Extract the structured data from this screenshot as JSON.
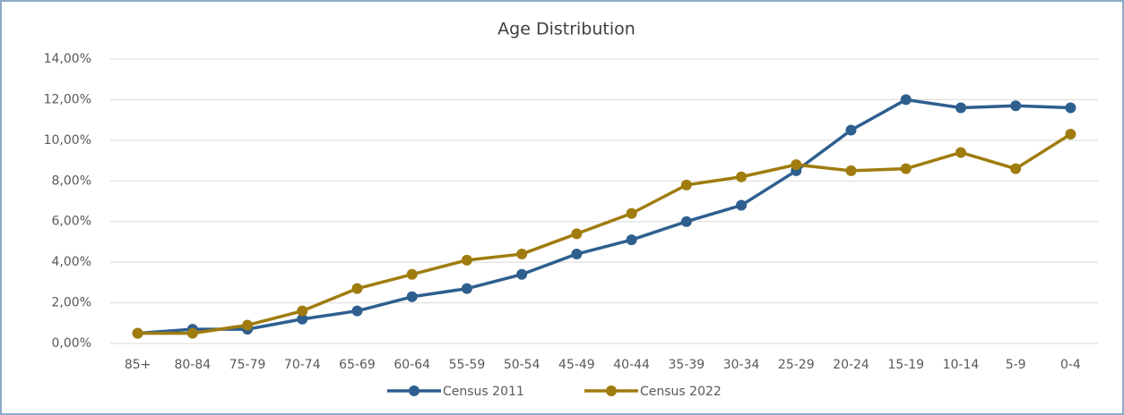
{
  "chart_data": {
    "type": "line",
    "title": "Age Distribution",
    "categories": [
      "85+",
      "80-84",
      "75-79",
      "70-74",
      "65-69",
      "60-64",
      "55-59",
      "50-54",
      "45-49",
      "40-44",
      "35-39",
      "30-34",
      "25-29",
      "20-24",
      "15-19",
      "10-14",
      "5-9",
      "0-4"
    ],
    "series": [
      {
        "name": "Census 2011",
        "color": "#2e5f8f",
        "values": [
          0.5,
          0.7,
          0.7,
          1.2,
          1.6,
          2.3,
          2.7,
          3.4,
          4.4,
          5.1,
          6.0,
          6.8,
          8.5,
          10.5,
          12.0,
          11.6,
          11.7,
          11.6
        ]
      },
      {
        "name": "Census 2022",
        "color": "#a07c0e",
        "values": [
          0.5,
          0.5,
          0.9,
          1.6,
          2.7,
          3.4,
          4.1,
          4.4,
          5.4,
          6.4,
          7.8,
          8.2,
          8.8,
          8.5,
          8.6,
          9.4,
          8.6,
          10.3
        ]
      }
    ],
    "ylim": [
      0,
      14
    ],
    "yticks": [
      {
        "value": 0,
        "label": "0,00%"
      },
      {
        "value": 2,
        "label": "2,00%"
      },
      {
        "value": 4,
        "label": "4,00%"
      },
      {
        "value": 6,
        "label": "6,00%"
      },
      {
        "value": 8,
        "label": "8,00%"
      },
      {
        "value": 10,
        "label": "10,00%"
      },
      {
        "value": 12,
        "label": "12,00%"
      },
      {
        "value": 14,
        "label": "14,00%"
      }
    ],
    "grid": true,
    "legend": "bottom"
  }
}
